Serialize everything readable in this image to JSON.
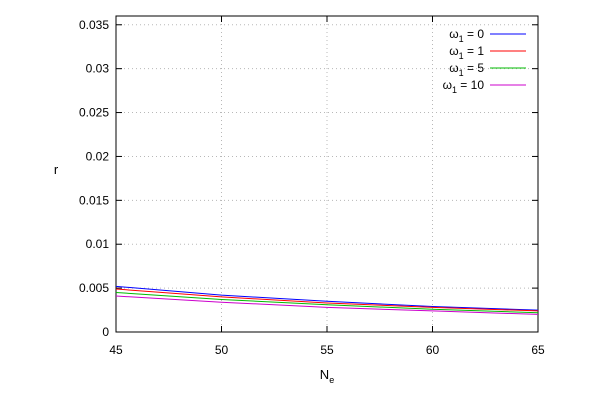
{
  "chart_data": {
    "type": "line",
    "xlabel": "N",
    "xlabel_sub": "e",
    "ylabel": "r",
    "xlim": [
      45,
      65
    ],
    "ylim": [
      0,
      0.036
    ],
    "x_ticks": [
      45,
      50,
      55,
      60,
      65
    ],
    "x_tick_labels": [
      "45",
      "50",
      "55",
      "60",
      "65"
    ],
    "y_ticks": [
      0,
      0.005,
      0.01,
      0.015,
      0.02,
      0.025,
      0.03,
      0.035
    ],
    "y_tick_labels": [
      "0",
      "0.005",
      "0.01",
      "0.015",
      "0.02",
      "0.025",
      "0.03",
      "0.035"
    ],
    "grid": true,
    "legend_position": "top-right",
    "x": [
      45,
      50,
      55,
      60,
      65
    ],
    "series": [
      {
        "name": "ω1 = 0",
        "label_main": "ω",
        "label_sub": "1",
        "label_rest": " = 0",
        "color": "#0000ff",
        "values": [
          0.0052,
          0.0042,
          0.0035,
          0.0029,
          0.0025
        ]
      },
      {
        "name": "ω1 = 1",
        "label_main": "ω",
        "label_sub": "1",
        "label_rest": " = 1",
        "color": "#ff0000",
        "values": [
          0.0049,
          0.004,
          0.0033,
          0.0028,
          0.0024
        ]
      },
      {
        "name": "ω1 = 5",
        "label_main": "ω",
        "label_sub": "1",
        "label_rest": " = 5",
        "color": "#00bb00",
        "values": [
          0.0045,
          0.0037,
          0.0031,
          0.0026,
          0.0022
        ]
      },
      {
        "name": "ω1 = 10",
        "label_main": "ω",
        "label_sub": "1",
        "label_rest": " = 10",
        "color": "#cc00cc",
        "values": [
          0.0041,
          0.0034,
          0.0028,
          0.0024,
          0.002
        ]
      }
    ]
  }
}
